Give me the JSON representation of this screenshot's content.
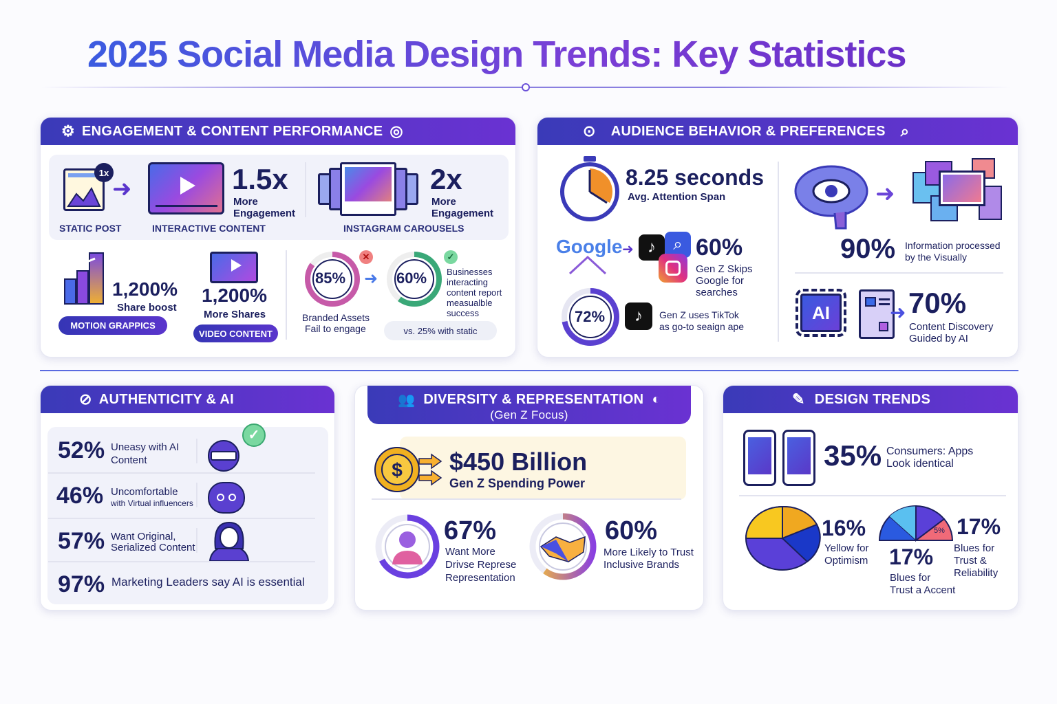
{
  "title": "2025 Social Media Design Trends: Key Statistics",
  "engagement": {
    "header": "ENGAGEMENT & CONTENT PERFORMANCE",
    "badge_1x": "1x",
    "static_post": "STATIC POST",
    "interactive_content": "INTERACTIVE CONTENT",
    "interactive_value": "1.5x",
    "interactive_label1": "More",
    "interactive_label2": "Engagement",
    "carousel_value": "2x",
    "carousel_label1": "More",
    "carousel_label2": "Engagement",
    "carousels": "INSTAGRAM CAROUSELS",
    "motion_value": "1,200%",
    "motion_label": "Share boost",
    "motion_pill": "MOTION GRAPPICS",
    "video_value": "1,200%",
    "video_label": "More Shares",
    "video_pill": "VIDEO CONTENT",
    "branded_value": "85%",
    "branded_label1": "Branded Assets",
    "branded_label2": "Fail to engage",
    "biz_value": "60%",
    "biz_label": [
      "Businesses",
      "interacting",
      "content report",
      "measualble",
      "success"
    ],
    "vs_static": "vs. 25% with static"
  },
  "audience": {
    "header": "AUDIENCE BEHAVIOR & PREFERENCES",
    "attention_value": "8.25 seconds",
    "attention_label": "Avg. Attention Span",
    "google_word": "Google",
    "skip_value": "60%",
    "skip_label": [
      "Gen Z Skips",
      "Google for",
      "searches"
    ],
    "tiktok_value": "72%",
    "tiktok_label": [
      "Gen Z uses TikTok",
      "as go-to seaign ape"
    ],
    "visual_value": "90%",
    "visual_label": [
      "Information processed",
      "by the Visually"
    ],
    "ai_chip": "AI",
    "ai_value": "70%",
    "ai_label": [
      "Content Discovery",
      "Guided by AI"
    ]
  },
  "authenticity": {
    "header": "AUTHENTICITY & AI",
    "rows": [
      {
        "value": "52%",
        "label": [
          "Uneasy with AI",
          "Content"
        ]
      },
      {
        "value": "46%",
        "label": [
          "Uncomfortable",
          "with Virtual influencers"
        ]
      },
      {
        "value": "57%",
        "label": [
          "Want Original,",
          "Serialized Content"
        ]
      },
      {
        "value": "97%",
        "label": [
          "Marketing Leaders say AI is essential"
        ]
      }
    ]
  },
  "diversity": {
    "header": "DIVERSITY & REPRESENTATION",
    "subheader": "(Gen Z Focus)",
    "spending_value": "$450 Billion",
    "spending_label": "Gen Z Spending Power",
    "rep_value": "67%",
    "rep_label": [
      "Want More",
      "Drivse Represe",
      "Representation"
    ],
    "trust_value": "60%",
    "trust_label": [
      "More Likely to Trust",
      "Inclusive Brands"
    ]
  },
  "design": {
    "header": "DESIGN TRENDS",
    "apps_value": "35%",
    "apps_label": [
      "Consumers: Apps",
      "Look identical"
    ],
    "yellow_value": "16%",
    "yellow_label": [
      "Yellow for",
      "Optimism"
    ],
    "accent_value": "17%",
    "accent_label": [
      "Blues for",
      "Trust a Accent"
    ],
    "slice_label": "5%",
    "blues_value": "17%",
    "blues_label": [
      "Blues for",
      "Trust &",
      "Reliability"
    ]
  },
  "colors": {
    "navy": "#1b1f5e",
    "accent": "#5a35cc",
    "header_start": "#3a3ab8",
    "header_end": "#6a32d2"
  }
}
